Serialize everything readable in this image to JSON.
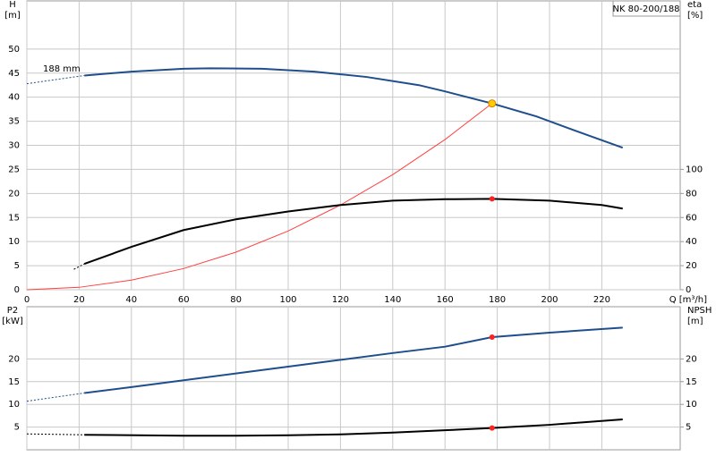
{
  "chart_data": [
    {
      "type": "line",
      "id_label": "NK 80-200/188",
      "ylabel": "H",
      "yunit": "[m]",
      "y2label": "eta",
      "y2unit": "[%]",
      "xlabel": "Q [m³/h]",
      "annotation": "188 mm",
      "xlim": [
        0,
        250
      ],
      "xticks": [
        0,
        20,
        40,
        60,
        80,
        100,
        120,
        140,
        160,
        180,
        200,
        220
      ],
      "xtick_labels": true,
      "ylim": [
        0,
        60
      ],
      "yticks": [
        0,
        5,
        10,
        15,
        20,
        25,
        30,
        35,
        40,
        45,
        50
      ],
      "y2lim": [
        0,
        240
      ],
      "y2ticks": [
        0,
        20,
        40,
        60,
        80,
        100
      ],
      "grid": true,
      "series": [
        {
          "color": "#1f4e8c",
          "width": 2,
          "dashed": false,
          "axis": "y",
          "x": [
            22,
            40,
            60,
            70,
            90,
            110,
            130,
            150,
            160,
            178,
            195,
            210,
            228
          ],
          "values": [
            44.5,
            45.3,
            45.9,
            46,
            45.9,
            45.3,
            44.2,
            42.5,
            41.2,
            38.7,
            36,
            33,
            29.5
          ]
        },
        {
          "color": "#1f4e8c",
          "width": 1,
          "dashed": true,
          "axis": "y",
          "x": [
            0,
            22
          ],
          "values": [
            42.8,
            44.5
          ]
        },
        {
          "color": "#ff4040",
          "width": 1,
          "dashed": false,
          "axis": "y",
          "x": [
            0,
            20,
            40,
            60,
            80,
            100,
            120,
            140,
            160,
            178
          ],
          "values": [
            0,
            0.5,
            2,
            4.4,
            7.8,
            12.2,
            17.6,
            23.9,
            31.2,
            38.7
          ]
        },
        {
          "color": "#000000",
          "width": 2,
          "dashed": false,
          "axis": "y2",
          "x": [
            22,
            40,
            60,
            80,
            100,
            120,
            140,
            160,
            178,
            200,
            220,
            228
          ],
          "values": [
            21.5,
            35.6,
            49.6,
            58.5,
            65,
            70.4,
            74,
            75.2,
            75.5,
            74,
            70.4,
            67.4
          ]
        },
        {
          "color": "#000000",
          "width": 1,
          "dashed": true,
          "axis": "y2",
          "x": [
            18,
            22
          ],
          "values": [
            17,
            21.5
          ]
        }
      ],
      "markers": [
        {
          "x": 178,
          "y": 38.7,
          "axis": "y",
          "color": "#ffcc00"
        },
        {
          "x": 178,
          "y": 75.5,
          "axis": "y2",
          "color": "#ff2020"
        }
      ]
    },
    {
      "type": "line",
      "ylabel": "P2",
      "yunit": "[kW]",
      "y2label": "NPSH",
      "y2unit": "[m]",
      "xlim": [
        0,
        250
      ],
      "xticks": [
        0,
        20,
        40,
        60,
        80,
        100,
        120,
        140,
        160,
        180,
        200,
        220
      ],
      "xtick_labels": false,
      "ylim": [
        0,
        31.5
      ],
      "yticks": [
        5,
        10,
        15,
        20
      ],
      "y2lim": [
        0,
        31.5
      ],
      "y2ticks": [
        5,
        10,
        15,
        20
      ],
      "grid": true,
      "series": [
        {
          "color": "#1f4e8c",
          "width": 2,
          "dashed": false,
          "axis": "y",
          "x": [
            22,
            40,
            60,
            80,
            100,
            120,
            140,
            160,
            178,
            200,
            228
          ],
          "values": [
            12.5,
            13.8,
            15.3,
            16.8,
            18.3,
            19.8,
            21.3,
            22.7,
            24.8,
            25.8,
            26.9
          ]
        },
        {
          "color": "#1f4e8c",
          "width": 1,
          "dashed": true,
          "axis": "y",
          "x": [
            0,
            22
          ],
          "values": [
            10.7,
            12.5
          ]
        },
        {
          "color": "#000000",
          "width": 2,
          "dashed": false,
          "axis": "y2",
          "x": [
            22,
            60,
            80,
            100,
            120,
            140,
            160,
            178,
            200,
            228
          ],
          "values": [
            3.3,
            3.1,
            3.1,
            3.2,
            3.4,
            3.8,
            4.3,
            4.8,
            5.5,
            6.7
          ]
        },
        {
          "color": "#000000",
          "width": 1,
          "dashed": true,
          "axis": "y2",
          "x": [
            0,
            22
          ],
          "values": [
            3.5,
            3.3
          ]
        }
      ],
      "markers": [
        {
          "x": 178,
          "y": 24.8,
          "axis": "y",
          "color": "#ff2020"
        },
        {
          "x": 178,
          "y": 4.8,
          "axis": "y2",
          "color": "#ff2020"
        }
      ]
    }
  ]
}
